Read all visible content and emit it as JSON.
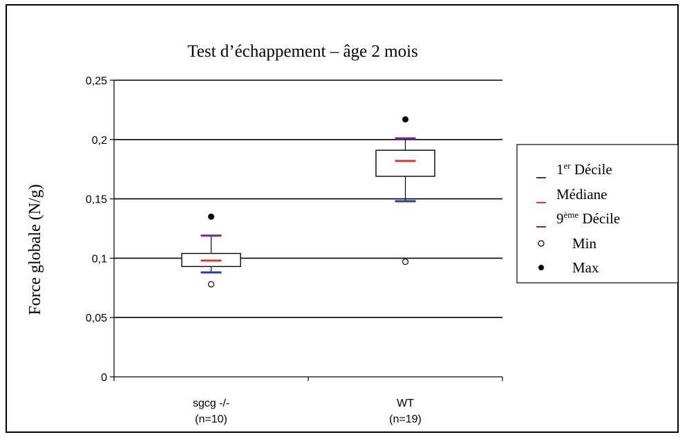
{
  "chart_data": {
    "type": "boxplot",
    "title": "Test d’échappement – âge 2 mois",
    "ylabel": "Force globale (N/g)",
    "xlabel": "",
    "ylim": [
      0,
      0.25
    ],
    "y_ticks": [
      "0",
      "0,05",
      "0,1",
      "0,15",
      "0,2",
      "0,25"
    ],
    "grid": true,
    "categories": [
      {
        "name": "sgcg -/-",
        "n": "(n=10)",
        "q1": 0.093,
        "q3": 0.104,
        "median": 0.098,
        "decile1": 0.088,
        "decile9": 0.119,
        "min": 0.078,
        "max": 0.135
      },
      {
        "name": "WT",
        "n": "(n=19)",
        "q1": 0.169,
        "q3": 0.191,
        "median": 0.182,
        "decile1": 0.148,
        "decile9": 0.201,
        "min": 0.097,
        "max": 0.217
      }
    ],
    "legend": {
      "position": "right",
      "items": [
        {
          "label_main": "1",
          "label_sup": "er",
          "label_rest": " Décile",
          "marker": "dash",
          "color": "#1f3f9f"
        },
        {
          "label_main": "Médiane",
          "label_sup": "",
          "label_rest": "",
          "marker": "dash",
          "color": "#e8332a"
        },
        {
          "label_main": "9",
          "label_sup": "ème",
          "label_rest": " Décile",
          "marker": "dash",
          "color": "#7a1fa2"
        },
        {
          "label_main": "Min",
          "label_sup": "",
          "label_rest": "",
          "marker": "open-circle",
          "color": "#000000"
        },
        {
          "label_main": "Max",
          "label_sup": "",
          "label_rest": "",
          "marker": "filled-circle",
          "color": "#000000"
        }
      ]
    },
    "colors": {
      "decile1": "#1f3f9f",
      "median": "#e8332a",
      "decile9": "#7a1fa2",
      "grid": "#000000"
    }
  }
}
